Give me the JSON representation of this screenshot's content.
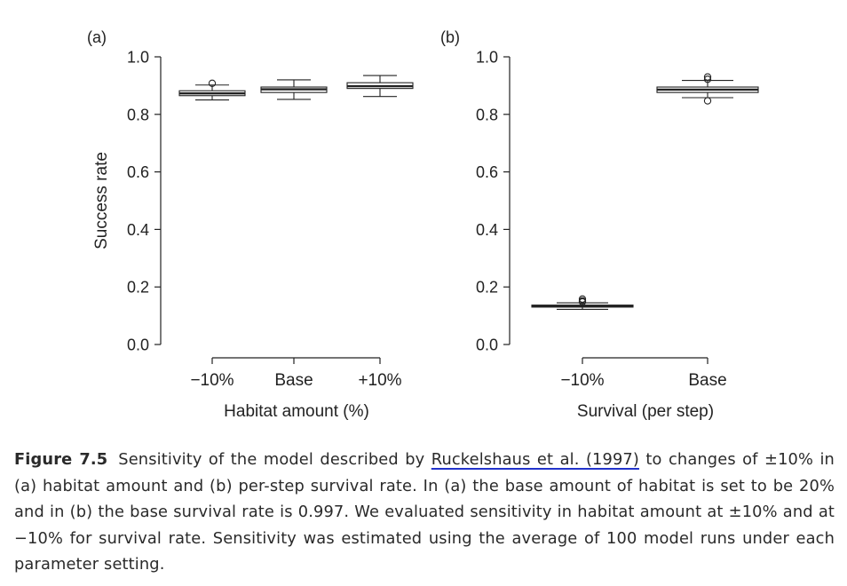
{
  "figure": {
    "panels": [
      {
        "panel_label": "(a)",
        "xlabel": "Habitat amount (%)",
        "ylabel": "Success rate",
        "yticks": [
          "0.0",
          "0.2",
          "0.4",
          "0.6",
          "0.8",
          "1.0"
        ]
      },
      {
        "panel_label": "(b)",
        "xlabel": "Survival (per step)",
        "ylabel": "",
        "yticks": [
          "0.0",
          "0.2",
          "0.4",
          "0.6",
          "0.8",
          "1.0"
        ]
      }
    ]
  },
  "chart_data": [
    {
      "type": "boxplot",
      "panel": "(a)",
      "title": "",
      "xlabel": "Habitat amount (%)",
      "ylabel": "Success rate",
      "ylim": [
        0.0,
        1.0
      ],
      "categories": [
        "−10%",
        "Base",
        "+10%"
      ],
      "boxes": [
        {
          "category": "−10%",
          "whisker_low": 0.85,
          "q1": 0.865,
          "median": 0.873,
          "q3": 0.882,
          "whisker_high": 0.902,
          "outliers": [
            0.908
          ]
        },
        {
          "category": "Base",
          "whisker_low": 0.852,
          "q1": 0.876,
          "median": 0.887,
          "q3": 0.895,
          "whisker_high": 0.92,
          "outliers": []
        },
        {
          "category": "+10%",
          "whisker_low": 0.862,
          "q1": 0.89,
          "median": 0.898,
          "q3": 0.91,
          "whisker_high": 0.935,
          "outliers": []
        }
      ],
      "grid": false
    },
    {
      "type": "boxplot",
      "panel": "(b)",
      "title": "",
      "xlabel": "Survival (per step)",
      "ylabel": "",
      "ylim": [
        0.0,
        1.0
      ],
      "categories": [
        "−10%",
        "Base"
      ],
      "boxes": [
        {
          "category": "−10%",
          "whisker_low": 0.122,
          "q1": 0.13,
          "median": 0.133,
          "q3": 0.137,
          "whisker_high": 0.145,
          "outliers": [
            0.148,
            0.152,
            0.158
          ]
        },
        {
          "category": "Base",
          "whisker_low": 0.858,
          "q1": 0.876,
          "median": 0.886,
          "q3": 0.895,
          "whisker_high": 0.918,
          "outliers": [
            0.93,
            0.922,
            0.847
          ]
        }
      ],
      "grid": false
    }
  ],
  "caption": {
    "label": "Figure 7.5",
    "text_before": "Sensitivity of the model described by ",
    "citation": "Ruckelshaus et al. (1997)",
    "text_after": " to changes of ±10% in (a) habitat amount and (b) per-step survival rate. In (a) the base amount of habitat is set to be 20% and in (b) the base survival rate is 0.997. We evaluated sensitivity in habitat amount at ±10% and at −10% for survival rate. Sensitivity was estimated using the average of 100 model runs under each parameter setting."
  }
}
